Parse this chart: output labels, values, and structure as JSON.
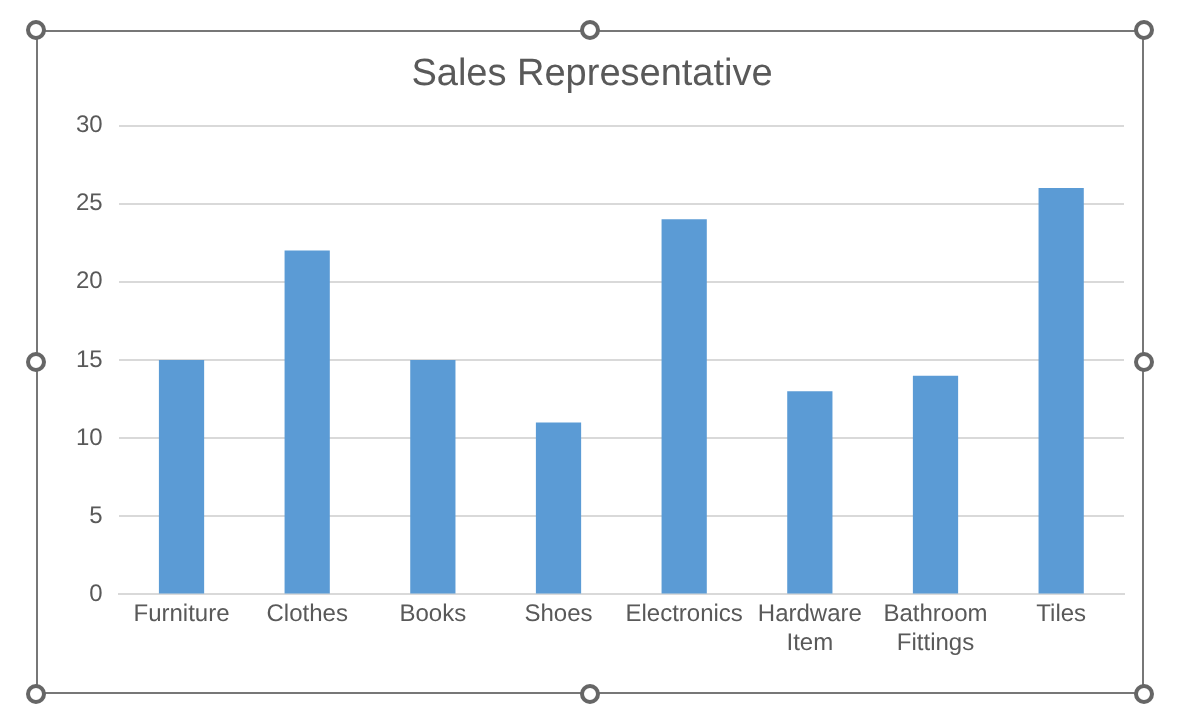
{
  "chart_data": {
    "type": "bar",
    "title": "Sales Representative",
    "categories": [
      "Furniture",
      "Clothes",
      "Books",
      "Shoes",
      "Electronics",
      "Hardware Item",
      "Bathroom Fittings",
      "Tiles"
    ],
    "values": [
      15,
      22,
      15,
      11,
      24,
      13,
      14,
      26
    ],
    "color": "#5b9bd5",
    "ylim": [
      0,
      30
    ],
    "yticks": [
      0,
      5,
      10,
      15,
      20,
      25,
      30
    ],
    "grid": "y",
    "legend": false
  }
}
